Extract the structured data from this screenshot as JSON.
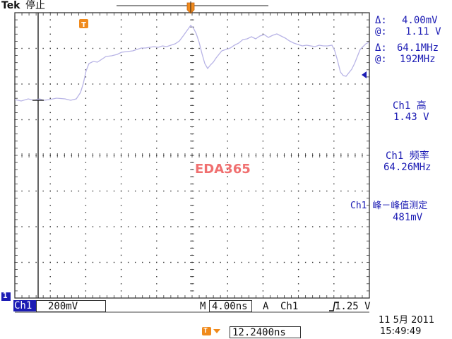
{
  "header": {
    "brand": "Tek",
    "state": "停止"
  },
  "right_panel": {
    "cursor_dv_label": "Δ:",
    "cursor_dv_value": "4.00mV",
    "cursor_v_label": "@:",
    "cursor_v_value": "1.11 V",
    "cursor_df_label": "Δ:",
    "cursor_df_value": "64.1MHz",
    "cursor_f_label": "@:",
    "cursor_f_value": "192MHz",
    "meas1_title": "Ch1 高",
    "meas1_value": "1.43 V",
    "meas2_title": "Ch1 频率",
    "meas2_value": "64.26MHz",
    "meas3_title": "Ch1 峰－峰值测定",
    "meas3_value": "481mV"
  },
  "watermark": "EDA365",
  "bottom_bar": {
    "channel_marker": "1",
    "channel": "Ch1",
    "volts_per_div": "200mV",
    "timebase_label": "M",
    "timebase": "4.00ns",
    "trigger_mode": "A",
    "trigger_source": "Ch1",
    "trigger_slope_icon": "rising-edge-icon",
    "trigger_level": "1.25 V",
    "trigger_marker": "T",
    "trigger_offset": "12.2400ns",
    "date": "11 5月  2011",
    "time": "15:49:49"
  },
  "colors": {
    "trace": "#b8b4e6",
    "text": "#1c1cb4",
    "trigger": "#f08a1c",
    "watermark": "#f07070"
  }
}
